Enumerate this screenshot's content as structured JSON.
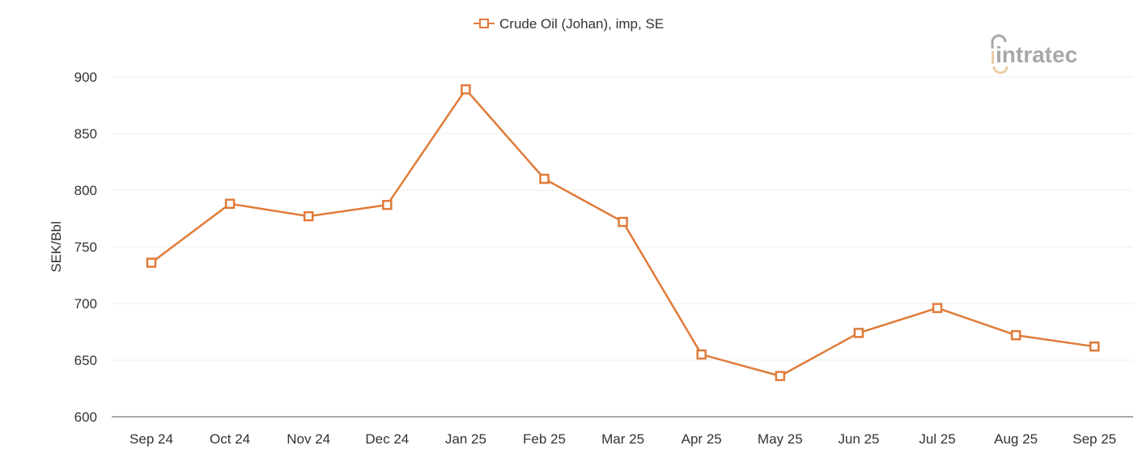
{
  "chart_data": {
    "type": "line",
    "title": "",
    "xlabel": "",
    "ylabel": "SEK/Bbl",
    "ylim": [
      600,
      900
    ],
    "yticks": [
      600,
      650,
      700,
      750,
      800,
      850,
      900
    ],
    "grid": true,
    "legend_position": "top-center",
    "categories": [
      "Sep 24",
      "Oct 24",
      "Nov 24",
      "Dec 24",
      "Jan 25",
      "Feb 25",
      "Mar 25",
      "Apr 25",
      "May 25",
      "Jun 25",
      "Jul 25",
      "Aug 25",
      "Sep 25"
    ],
    "series": [
      {
        "name": "Crude Oil (Johan), imp, SE",
        "color": "#e07b39",
        "values": [
          736,
          788,
          777,
          787,
          889,
          810,
          772,
          655,
          636,
          674,
          696,
          672,
          662
        ]
      }
    ]
  },
  "watermark": "intratec"
}
